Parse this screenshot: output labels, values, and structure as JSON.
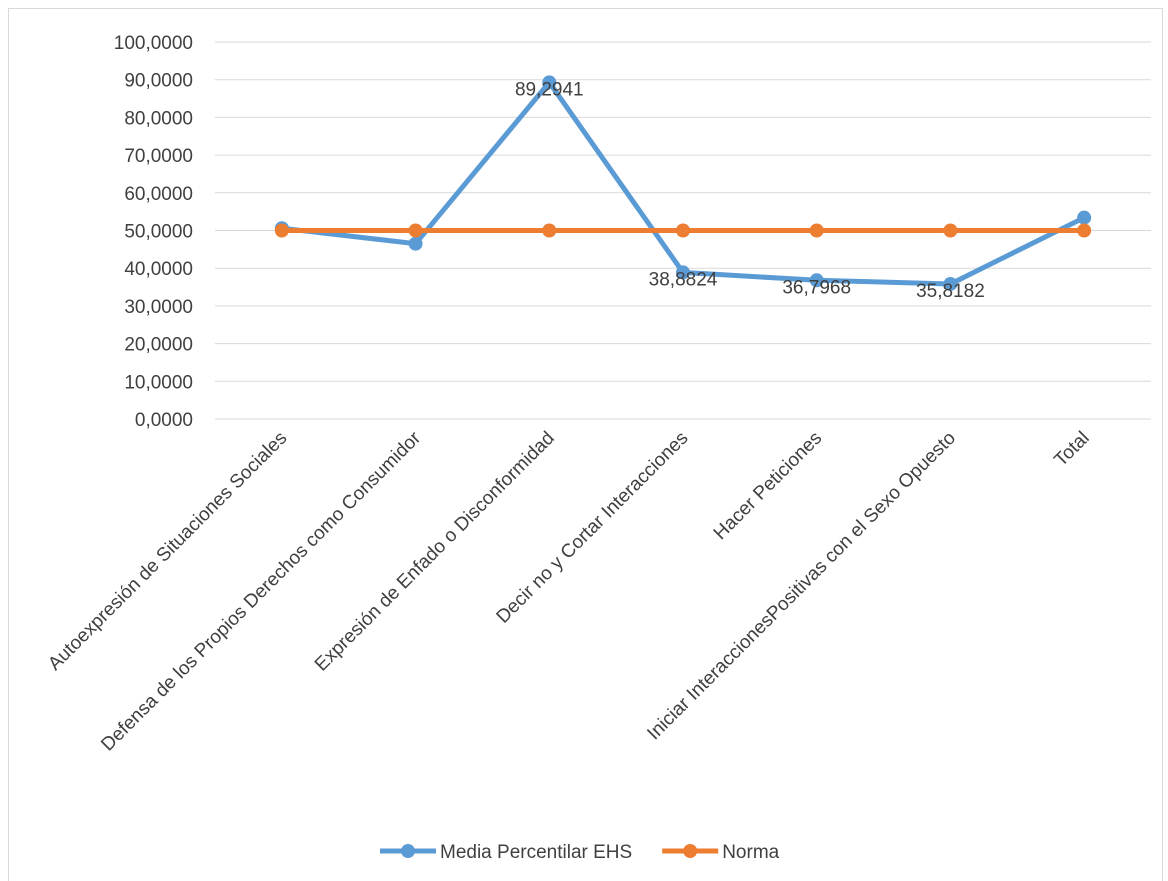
{
  "chart_data": {
    "type": "line",
    "categories": [
      "Autoexpresión de Situaciones Sociales",
      "Defensa de los Propios Derechos como Consumidor",
      "Expresión de Enfado o Disconformidad",
      "Decir no y Cortar Interacciones",
      "Hacer Peticiones",
      "Iniciar InteraccionesPositivas con el Sexo Opuesto",
      "Total"
    ],
    "series": [
      {
        "name": "Media Percentilar EHS",
        "color": "#5b9bd5",
        "values": [
          50.6,
          46.5,
          89.2941,
          38.8824,
          36.7968,
          35.8182,
          53.4
        ],
        "data_labels": [
          "",
          "",
          "89,2941",
          "38,8824",
          "36,7968",
          "35,8182",
          ""
        ]
      },
      {
        "name": "Norma",
        "color": "#ed7d31",
        "values": [
          50,
          50,
          50,
          50,
          50,
          50,
          50
        ]
      }
    ],
    "ylim": [
      0,
      100
    ],
    "yticks": [
      "0,0000",
      "10,0000",
      "20,0000",
      "30,0000",
      "40,0000",
      "50,0000",
      "60,0000",
      "70,0000",
      "80,0000",
      "90,0000",
      "100,0000"
    ],
    "grid": true,
    "legend": "bottom"
  }
}
